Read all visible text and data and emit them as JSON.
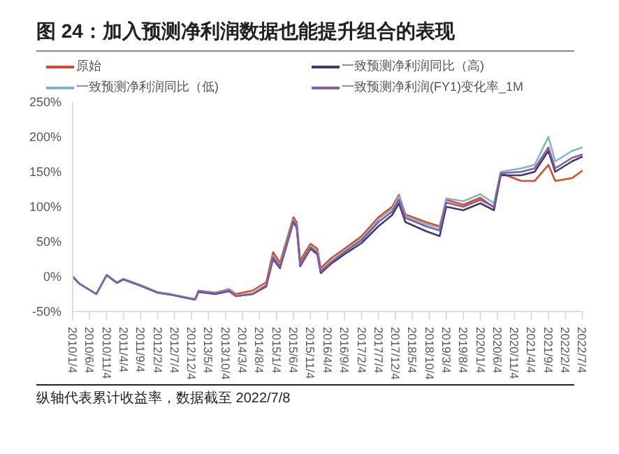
{
  "chart_data": {
    "type": "line",
    "title": "图 24：加入预测净利润数据也能提升组合的表现",
    "annotations": [
      "纵轴代表累计收益率，数据截至 2022/7/8"
    ],
    "x": [
      "2010-01-04",
      "2010-03-04",
      "2010-08-04",
      "2010-11-04",
      "2011-02-04",
      "2011-04-04",
      "2011-09-04",
      "2012-02-04",
      "2012-06-04",
      "2012-11-04",
      "2013-01-04",
      "2013-02-04",
      "2013-07-04",
      "2013-11-04",
      "2014-01-04",
      "2014-06-04",
      "2014-10-04",
      "2014-12-04",
      "2015-02-04",
      "2015-06-04",
      "2015-07-04",
      "2015-08-04",
      "2015-11-04",
      "2016-01-04",
      "2016-02-04",
      "2016-05-04",
      "2016-09-04",
      "2017-02-04",
      "2017-07-04",
      "2017-11-04",
      "2018-01-04",
      "2018-03-04",
      "2018-09-04",
      "2019-01-04",
      "2019-03-04",
      "2019-08-04",
      "2020-01-04",
      "2020-05-04",
      "2020-07-04",
      "2021-01-04",
      "2021-05-04",
      "2021-09-04",
      "2021-11-04",
      "2022-04-04",
      "2022-07-08"
    ],
    "series": [
      {
        "name": "原始",
        "color": "#d84a2a",
        "values": [
          null,
          null,
          null,
          null,
          null,
          null,
          null,
          null,
          null,
          null,
          null,
          -20,
          -23,
          -18,
          -25,
          -20,
          -8,
          35,
          20,
          85,
          78,
          23,
          47,
          40,
          12,
          26,
          40,
          58,
          85,
          100,
          117,
          89,
          78,
          72,
          110,
          103,
          113,
          99,
          148,
          137,
          137,
          160,
          137,
          141,
          152
        ]
      },
      {
        "name": "一致预测净利润同比（高)",
        "color": "#3d3b6b",
        "values": [
          0,
          -10,
          -25,
          2,
          -9,
          -4,
          -13,
          -23,
          -26,
          -31,
          -33,
          -22,
          -25,
          -21,
          -28,
          -25,
          -14,
          25,
          12,
          78,
          70,
          15,
          40,
          32,
          5,
          18,
          32,
          48,
          72,
          88,
          105,
          78,
          65,
          58,
          100,
          95,
          105,
          95,
          145,
          145,
          150,
          180,
          150,
          165,
          172
        ]
      },
      {
        "name": "一致预测净利润同比（低)",
        "color": "#7fb4c9",
        "values": [
          0,
          -10,
          -25,
          3,
          -8,
          -3,
          -12,
          -22,
          -25,
          -30,
          -32,
          -20,
          -23,
          -19,
          -27,
          -24,
          -12,
          30,
          16,
          82,
          74,
          18,
          44,
          36,
          8,
          22,
          37,
          55,
          82,
          97,
          115,
          87,
          75,
          70,
          112,
          108,
          118,
          105,
          150,
          155,
          160,
          200,
          165,
          180,
          185
        ]
      },
      {
        "name": "一致预测净利润(FY1)变化率_1M",
        "color": "#8a5a9e",
        "values": [
          0,
          -10,
          -25,
          2,
          -9,
          -4,
          -13,
          -23,
          -26,
          -31,
          -33,
          -21,
          -24,
          -20,
          -28,
          -25,
          -13,
          28,
          14,
          80,
          72,
          17,
          42,
          34,
          7,
          20,
          35,
          52,
          78,
          93,
          110,
          84,
          72,
          66,
          106,
          100,
          110,
          100,
          148,
          150,
          155,
          185,
          155,
          170,
          175
        ]
      }
    ],
    "xlim": [
      "2010-01-04",
      "2022-07-08"
    ],
    "xticks": [
      {
        "value": "2010-01-04",
        "label": "2010/1/4"
      },
      {
        "value": "2010-06-04",
        "label": "2010/6/4"
      },
      {
        "value": "2010-11-04",
        "label": "2010/11/4"
      },
      {
        "value": "2011-04-04",
        "label": "2011/4/4"
      },
      {
        "value": "2011-09-04",
        "label": "2011/9/4"
      },
      {
        "value": "2012-02-04",
        "label": "2012/2/4"
      },
      {
        "value": "2012-07-04",
        "label": "2012/7/4"
      },
      {
        "value": "2012-12-04",
        "label": "2012/12/4"
      },
      {
        "value": "2013-05-04",
        "label": "2013/5/4"
      },
      {
        "value": "2013-10-04",
        "label": "2013/10/4"
      },
      {
        "value": "2014-03-04",
        "label": "2014/3/4"
      },
      {
        "value": "2014-08-04",
        "label": "2014/8/4"
      },
      {
        "value": "2015-01-04",
        "label": "2015/1/4"
      },
      {
        "value": "2015-06-04",
        "label": "2015/6/4"
      },
      {
        "value": "2015-11-04",
        "label": "2015/11/4"
      },
      {
        "value": "2016-04-04",
        "label": "2016/4/4"
      },
      {
        "value": "2016-09-04",
        "label": "2016/9/4"
      },
      {
        "value": "2017-02-04",
        "label": "2017/2/4"
      },
      {
        "value": "2017-07-04",
        "label": "2017/7/4"
      },
      {
        "value": "2017-12-04",
        "label": "2017/12/4"
      },
      {
        "value": "2018-05-04",
        "label": "2018/5/4"
      },
      {
        "value": "2018-10-04",
        "label": "2018/10/4"
      },
      {
        "value": "2019-03-04",
        "label": "2019/3/4"
      },
      {
        "value": "2019-08-04",
        "label": "2019/8/4"
      },
      {
        "value": "2020-01-04",
        "label": "2020/1/4"
      },
      {
        "value": "2020-06-04",
        "label": "2020/6/4"
      },
      {
        "value": "2020-11-04",
        "label": "2020/11/4"
      },
      {
        "value": "2021-04-04",
        "label": "2021/4/4"
      },
      {
        "value": "2021-09-04",
        "label": "2021/9/4"
      },
      {
        "value": "2022-02-04",
        "label": "2022/2/4"
      },
      {
        "value": "2022-07-04",
        "label": "2022/7/4"
      }
    ],
    "ylim": [
      -50,
      250
    ],
    "yticks": [
      {
        "value": -50,
        "label": "-50%"
      },
      {
        "value": 0,
        "label": "0%"
      },
      {
        "value": 50,
        "label": "50%"
      },
      {
        "value": 100,
        "label": "100%"
      },
      {
        "value": 150,
        "label": "150%"
      },
      {
        "value": 200,
        "label": "200%"
      },
      {
        "value": 250,
        "label": "250%"
      }
    ],
    "grid": false,
    "legend": "top",
    "marker": "none",
    "line_style": "solid"
  }
}
